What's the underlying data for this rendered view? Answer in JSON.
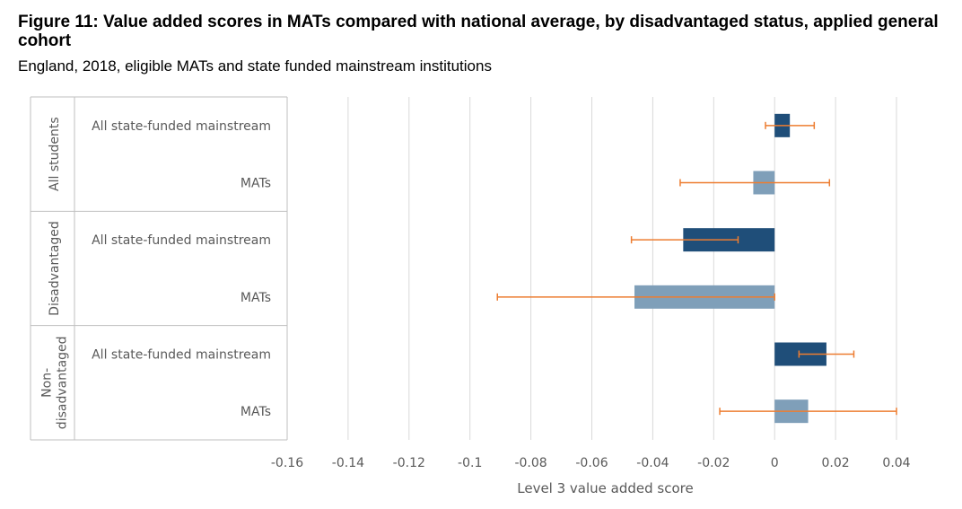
{
  "title": "Figure 11: Value added scores in MATs compared with national average, by disadvantaged status, applied general cohort",
  "subtitle": "England, 2018, eligible MATs and state funded mainstream institutions",
  "chart_data": {
    "type": "bar",
    "orientation": "horizontal",
    "groups": [
      {
        "label": "All students",
        "categories": [
          "All state-funded mainstream",
          "MATs"
        ]
      },
      {
        "label": "Disadvantaged",
        "categories": [
          "All state-funded mainstream",
          "MATs"
        ]
      },
      {
        "label": "Non-disadvantaged",
        "label_lines": [
          "Non-",
          "disadvantaged"
        ],
        "categories": [
          "All state-funded mainstream",
          "MATs"
        ]
      }
    ],
    "bars": [
      {
        "group": 0,
        "category": "All state-funded mainstream",
        "value": 0.005,
        "ci": [
          -0.003,
          0.013
        ],
        "color": "#1f4e79"
      },
      {
        "group": 0,
        "category": "MATs",
        "value": -0.007,
        "ci": [
          -0.031,
          0.018
        ],
        "color": "#7f9fb9"
      },
      {
        "group": 1,
        "category": "All state-funded mainstream",
        "value": -0.03,
        "ci": [
          -0.047,
          -0.012
        ],
        "color": "#1f4e79"
      },
      {
        "group": 1,
        "category": "MATs",
        "value": -0.046,
        "ci": [
          -0.091,
          0.0
        ],
        "color": "#7f9fb9"
      },
      {
        "group": 2,
        "category": "All state-funded mainstream",
        "value": 0.017,
        "ci": [
          0.008,
          0.026
        ],
        "color": "#1f4e79"
      },
      {
        "group": 2,
        "category": "MATs",
        "value": 0.011,
        "ci": [
          -0.018,
          0.04
        ],
        "color": "#7f9fb9"
      }
    ],
    "xlabel": "Level 3 value added score",
    "xlim": [
      -0.16,
      0.04
    ],
    "xticks": [
      "-0.16",
      "-0.14",
      "-0.12",
      "-0.1",
      "-0.08",
      "-0.06",
      "-0.04",
      "-0.02",
      "0",
      "0.02",
      "0.04"
    ],
    "grid": true,
    "error_bar_color": "#ed7d31"
  }
}
